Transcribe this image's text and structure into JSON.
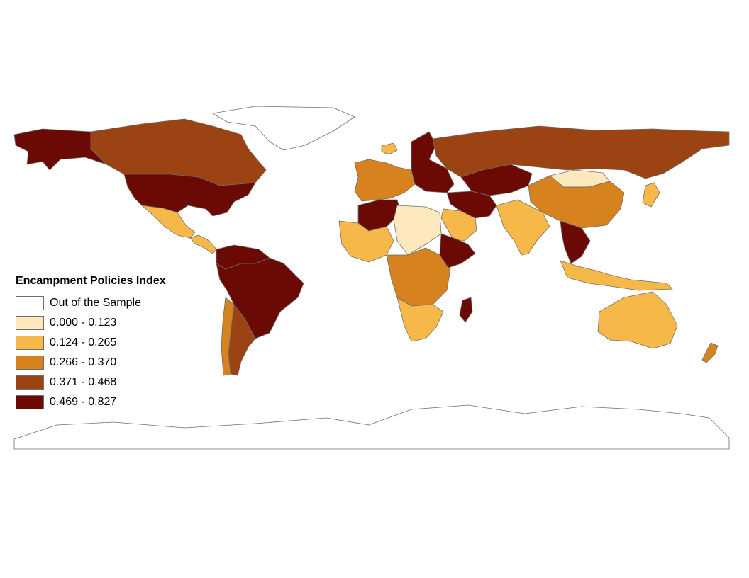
{
  "legend": {
    "title": "Encampment Policies Index",
    "classes": [
      {
        "label": "Out of the Sample",
        "color": "#ffffff"
      },
      {
        "label": "0.000 - 0.123",
        "color": "#fee9bf"
      },
      {
        "label": "0.124 - 0.265",
        "color": "#f6b848"
      },
      {
        "label": "0.266 - 0.370",
        "color": "#d5821f"
      },
      {
        "label": "0.371 - 0.468",
        "color": "#9c4313"
      },
      {
        "label": "0.469 - 0.827",
        "color": "#6b0a04"
      }
    ]
  },
  "regions": [
    {
      "name": "Alaska",
      "class": 5
    },
    {
      "name": "Canada",
      "class": 4
    },
    {
      "name": "United States",
      "class": 5
    },
    {
      "name": "Mexico",
      "class": 2
    },
    {
      "name": "Central America",
      "class": 2
    },
    {
      "name": "Colombia-Venezuela",
      "class": 5
    },
    {
      "name": "Brazil",
      "class": 5
    },
    {
      "name": "Argentina",
      "class": 4
    },
    {
      "name": "Chile",
      "class": 3
    },
    {
      "name": "Greenland",
      "class": 0
    },
    {
      "name": "Iceland",
      "class": 2
    },
    {
      "name": "Russia",
      "class": 4
    },
    {
      "name": "Europe",
      "class": 3
    },
    {
      "name": "Eastern Europe",
      "class": 5
    },
    {
      "name": "Kazakhstan",
      "class": 5
    },
    {
      "name": "Mongolia",
      "class": 1
    },
    {
      "name": "China",
      "class": 3
    },
    {
      "name": "India",
      "class": 2
    },
    {
      "name": "Middle East",
      "class": 5
    },
    {
      "name": "Arabia",
      "class": 2
    },
    {
      "name": "North Africa",
      "class": 5
    },
    {
      "name": "West Africa",
      "class": 2
    },
    {
      "name": "Sahel",
      "class": 1
    },
    {
      "name": "Central Africa",
      "class": 3
    },
    {
      "name": "Ethiopia",
      "class": 5
    },
    {
      "name": "Southern Africa",
      "class": 2
    },
    {
      "name": "Madagascar",
      "class": 5
    },
    {
      "name": "Southeast Asia",
      "class": 5
    },
    {
      "name": "Indonesia",
      "class": 2
    },
    {
      "name": "Australia",
      "class": 2
    },
    {
      "name": "New Zealand",
      "class": 3
    },
    {
      "name": "Japan",
      "class": 2
    },
    {
      "name": "Antarctica",
      "class": 0
    }
  ]
}
